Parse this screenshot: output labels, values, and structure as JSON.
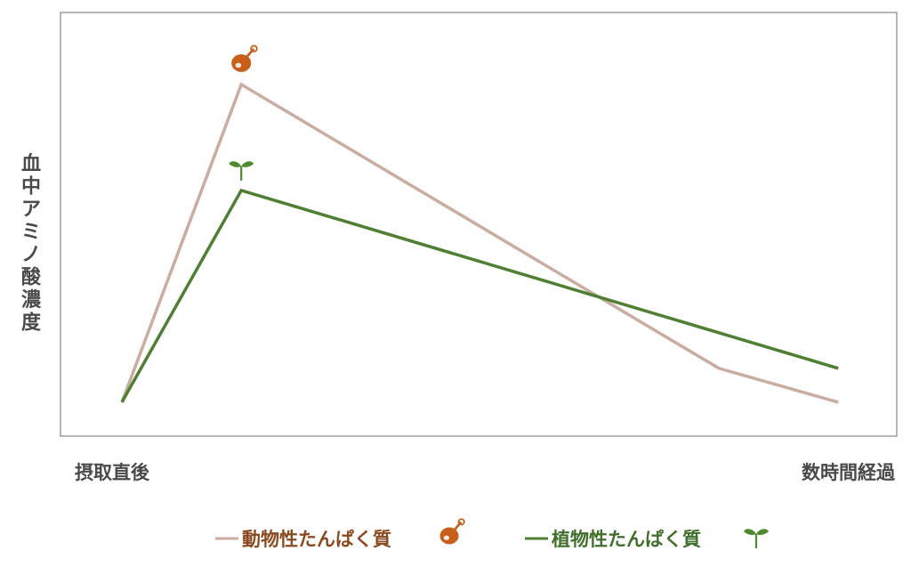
{
  "chart_data": {
    "type": "line",
    "title": "",
    "ylabel": "血中アミノ酸濃度",
    "xlabel": "",
    "categories": [
      "摂取直後",
      "",
      "",
      "",
      "",
      "数時間経過"
    ],
    "x": [
      0,
      1,
      2,
      3,
      4,
      5
    ],
    "ylim": [
      0,
      100
    ],
    "grid": false,
    "legend_position": "bottom",
    "series": [
      {
        "name": "動物性たんぱく質",
        "color": "#c9ada0",
        "label_color": "#8a4a1f",
        "icon": "meat-drumstick-icon",
        "points": [
          [
            0,
            8
          ],
          [
            1,
            83
          ],
          [
            5,
            16
          ],
          [
            6,
            8
          ]
        ]
      },
      {
        "name": "植物性たんぱく質",
        "color": "#4f7f33",
        "label_color": "#3f6f2a",
        "icon": "sprout-icon",
        "points": [
          [
            0,
            8
          ],
          [
            1,
            58
          ],
          [
            6,
            16
          ]
        ]
      }
    ]
  }
}
